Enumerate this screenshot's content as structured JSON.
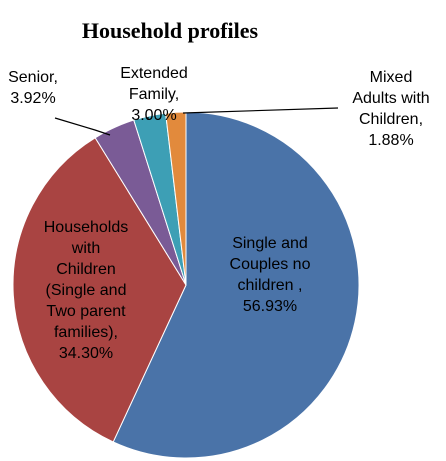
{
  "chart_data": {
    "type": "pie",
    "title": "Household profiles",
    "slices": [
      {
        "label": "Single and Couples no children ,",
        "value": 56.93,
        "value_text": "56.93%",
        "color": "#4A73A8",
        "label_lines": [
          "Single and",
          "Couples no",
          "children ,",
          "56.93%"
        ]
      },
      {
        "label": "Households with Children (Single and Two parent families),",
        "value": 34.3,
        "value_text": "34.30%",
        "color": "#A94442",
        "label_lines": [
          "Households",
          "with",
          "Children",
          "(Single and",
          "Two parent",
          "families),",
          "34.30%"
        ]
      },
      {
        "label": "Senior,",
        "value": 3.92,
        "value_text": "3.92%",
        "color": "#7A5B96",
        "label_lines": [
          "Senior,",
          "3.92%"
        ]
      },
      {
        "label": "Extended Family,",
        "value": 3.0,
        "value_text": "3.00%",
        "color": "#3D9FB5",
        "label_lines": [
          "Extended",
          "Family,",
          "3.00%"
        ]
      },
      {
        "label": "Mixed Adults with Children,",
        "value": 1.88,
        "value_text": "1.88%",
        "color": "#E28A3C",
        "label_lines": [
          "Mixed",
          "Adults with",
          "Children,",
          "1.88%"
        ]
      }
    ]
  }
}
